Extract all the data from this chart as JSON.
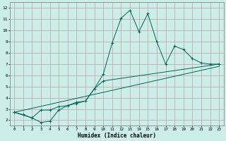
{
  "xlabel": "Humidex (Indice chaleur)",
  "bg_color": "#cceee8",
  "grid_color_major": "#c0a0a0",
  "grid_color_minor": "#d8c8c8",
  "line_color": "#006655",
  "xlim": [
    -0.5,
    23.5
  ],
  "ylim": [
    1.5,
    12.5
  ],
  "xticks": [
    0,
    1,
    2,
    3,
    4,
    5,
    6,
    7,
    8,
    9,
    10,
    11,
    12,
    13,
    14,
    15,
    16,
    17,
    18,
    19,
    20,
    21,
    22,
    23
  ],
  "yticks": [
    2,
    3,
    4,
    5,
    6,
    7,
    8,
    9,
    10,
    11,
    12
  ],
  "series1": [
    [
      0,
      2.7
    ],
    [
      1,
      2.5
    ],
    [
      2,
      2.2
    ],
    [
      3,
      1.8
    ],
    [
      4,
      1.9
    ],
    [
      5,
      2.9
    ],
    [
      6,
      3.3
    ],
    [
      7,
      3.5
    ],
    [
      8,
      3.7
    ],
    [
      9,
      4.8
    ],
    [
      10,
      6.1
    ],
    [
      11,
      8.9
    ],
    [
      12,
      11.1
    ],
    [
      13,
      11.8
    ],
    [
      14,
      9.9
    ],
    [
      15,
      11.5
    ],
    [
      16,
      9.0
    ],
    [
      17,
      7.0
    ],
    [
      18,
      8.6
    ],
    [
      19,
      8.3
    ],
    [
      20,
      7.5
    ],
    [
      21,
      7.1
    ],
    [
      22,
      7.0
    ],
    [
      23,
      7.0
    ]
  ],
  "series2": [
    [
      0,
      2.7
    ],
    [
      2,
      2.2
    ],
    [
      3,
      2.9
    ],
    [
      4,
      2.9
    ],
    [
      5,
      3.2
    ],
    [
      6,
      3.3
    ],
    [
      7,
      3.6
    ],
    [
      8,
      3.7
    ],
    [
      9,
      4.8
    ],
    [
      10,
      5.5
    ],
    [
      23,
      7.0
    ]
  ],
  "series3": [
    [
      0,
      2.7
    ],
    [
      23,
      6.8
    ]
  ]
}
